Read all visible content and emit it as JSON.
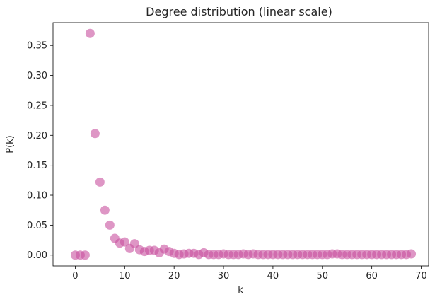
{
  "chart_data": {
    "type": "scatter",
    "title": "Degree distribution (linear scale)",
    "xlabel": "k",
    "ylabel": "P(k)",
    "xlim": [
      -4.5,
      71.5
    ],
    "ylim": [
      -0.018,
      0.388
    ],
    "xticks": [
      0,
      10,
      20,
      30,
      40,
      50,
      60,
      70
    ],
    "yticks": [
      0.0,
      0.05,
      0.1,
      0.15,
      0.2,
      0.25,
      0.3,
      0.35
    ],
    "ytick_labels": [
      "0.00",
      "0.05",
      "0.10",
      "0.15",
      "0.20",
      "0.25",
      "0.30",
      "0.35"
    ],
    "grid": false,
    "marker_color": "#c8509e",
    "marker_alpha": 0.6,
    "series": [
      {
        "x": [
          0,
          1,
          2,
          3,
          4,
          5,
          6,
          7,
          8,
          9,
          10,
          11,
          12,
          13,
          14,
          15,
          16,
          17,
          18,
          19,
          20,
          21,
          22,
          23,
          24,
          25,
          26,
          27,
          28,
          29,
          30,
          31,
          32,
          33,
          34,
          35,
          36,
          37,
          38,
          39,
          40,
          41,
          42,
          43,
          44,
          45,
          46,
          47,
          48,
          49,
          50,
          51,
          52,
          53,
          54,
          55,
          56,
          57,
          58,
          59,
          60,
          61,
          62,
          63,
          64,
          65,
          66,
          67,
          68
        ],
        "y": [
          0.0,
          0.0,
          0.0,
          0.37,
          0.203,
          0.122,
          0.075,
          0.05,
          0.028,
          0.02,
          0.022,
          0.011,
          0.019,
          0.009,
          0.006,
          0.008,
          0.008,
          0.004,
          0.01,
          0.006,
          0.003,
          0.001,
          0.002,
          0.003,
          0.003,
          0.001,
          0.004,
          0.001,
          0.001,
          0.001,
          0.002,
          0.001,
          0.001,
          0.001,
          0.002,
          0.001,
          0.002,
          0.001,
          0.001,
          0.001,
          0.001,
          0.001,
          0.001,
          0.001,
          0.001,
          0.001,
          0.001,
          0.001,
          0.001,
          0.001,
          0.001,
          0.001,
          0.002,
          0.002,
          0.001,
          0.001,
          0.001,
          0.001,
          0.001,
          0.001,
          0.001,
          0.001,
          0.001,
          0.001,
          0.001,
          0.001,
          0.001,
          0.001,
          0.002
        ]
      }
    ]
  }
}
